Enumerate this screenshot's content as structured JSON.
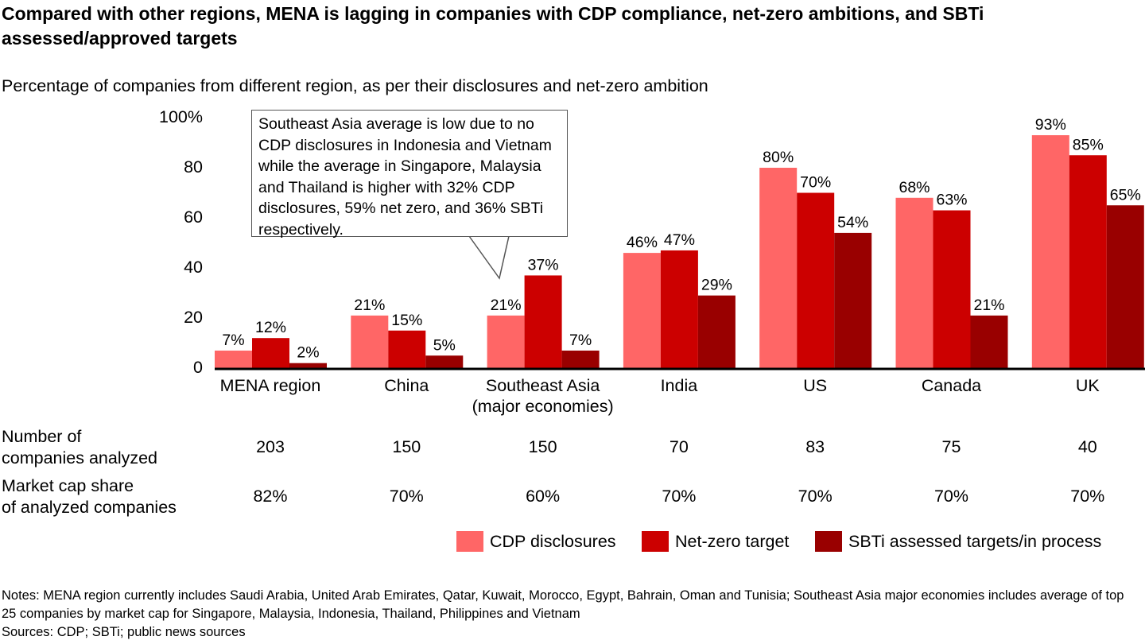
{
  "title": "Compared with other regions, MENA is lagging in companies with CDP compliance, net-zero ambitions, and SBTi assessed/approved targets",
  "subtitle": "Percentage of companies from different region, as per their disclosures and net-zero ambition",
  "chart_data": {
    "type": "bar",
    "categories": [
      "MENA region",
      "China",
      "Southeast Asia\n(major economies)",
      "India",
      "US",
      "Canada",
      "UK"
    ],
    "series": [
      {
        "name": "CDP disclosures",
        "color": "#FF6666",
        "values": [
          7,
          21,
          21,
          46,
          80,
          68,
          93
        ]
      },
      {
        "name": "Net-zero target",
        "color": "#CC0000",
        "values": [
          12,
          15,
          37,
          47,
          70,
          63,
          85
        ]
      },
      {
        "name": "SBTi assessed targets/in process",
        "color": "#990000",
        "values": [
          2,
          5,
          7,
          29,
          54,
          21,
          65
        ]
      }
    ],
    "yticks": [
      "0",
      "20",
      "40",
      "60",
      "80",
      "100%"
    ],
    "ylim": [
      0,
      100
    ],
    "legend": "bottom-right",
    "grid": false,
    "annotation": "Southeast Asia average is low due to no CDP disclosures in Indonesia and Vietnam while the average in Singapore, Malaysia and Thailand is higher with 32% CDP disclosures, 59% net zero, and 36% SBTi respectively."
  },
  "table": {
    "rows": [
      {
        "label": "Number of\ncompanies analyzed",
        "values": [
          "203",
          "150",
          "150",
          "70",
          "83",
          "75",
          "40"
        ]
      },
      {
        "label": "Market cap share\nof analyzed companies",
        "values": [
          "82%",
          "70%",
          "60%",
          "70%",
          "70%",
          "70%",
          "70%"
        ]
      }
    ]
  },
  "notes": "Notes: MENA region currently includes Saudi Arabia, United Arab Emirates, Qatar, Kuwait, Morocco, Egypt, Bahrain, Oman and Tunisia; Southeast Asia major economies includes average of top 25 companies by market cap for Singapore, Malaysia, Indonesia, Thailand, Philippines and Vietnam",
  "sources": "Sources: CDP; SBTi; public news sources"
}
